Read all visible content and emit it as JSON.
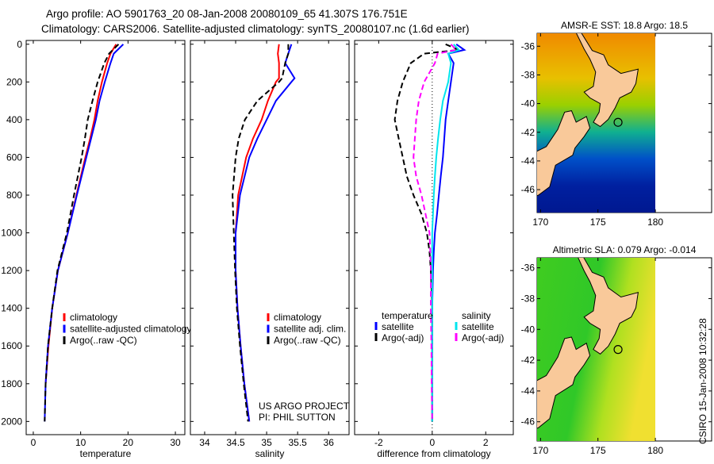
{
  "title_lines": [
    "Argo profile: AO 5901763_20 08-Jan-2008 20080109_65 41.307S 176.751E",
    "Climatology: CARS2006. Satellite-adjusted climatology: synTS_20080107.nc (1.6d earlier)"
  ],
  "side_stamp": "CSIRO 15-Jan-2008 10:32:28",
  "colors": {
    "climatology": "#ff0000",
    "satellite": "#0000ff",
    "argo": "#000000",
    "sal_satellite": "#00e5ee",
    "sal_argo": "#ff00ff"
  },
  "chart_data": [
    {
      "type": "line",
      "xlabel": "temperature",
      "ylabel": "",
      "xlim": [
        -1.5,
        32
      ],
      "ylim": [
        2070,
        -20
      ],
      "xticks": [
        "0",
        "10",
        "20",
        "30"
      ],
      "yticks": [
        "0",
        "200",
        "400",
        "600",
        "800",
        "1000",
        "1200",
        "1400",
        "1600",
        "1800",
        "2000"
      ],
      "depth": [
        0,
        50,
        100,
        200,
        300,
        400,
        500,
        600,
        800,
        1000,
        1200,
        1400,
        1600,
        1800,
        2000
      ],
      "series": [
        {
          "name": "climatology",
          "color_key": "climatology",
          "dash": false,
          "values": [
            17.5,
            16.3,
            15.6,
            14.5,
            13.6,
            12.9,
            12.0,
            11.0,
            9.1,
            7.3,
            5.2,
            4.0,
            3.2,
            2.6,
            null
          ]
        },
        {
          "name": "satellite-adjusted climatology",
          "color_key": "satellite",
          "dash": false,
          "values": [
            19.0,
            17.0,
            16.3,
            15.1,
            14.0,
            13.2,
            12.2,
            11.2,
            9.2,
            7.3,
            5.2,
            4.0,
            3.1,
            2.6,
            2.4
          ]
        },
        {
          "name": "Argo(..raw -QC)",
          "color_key": "argo",
          "dash": true,
          "values": [
            18.0,
            16.0,
            15.0,
            13.6,
            12.5,
            11.5,
            10.9,
            10.2,
            8.6,
            7.1,
            5.1,
            4.0,
            3.1,
            2.6,
            2.4
          ]
        }
      ],
      "legend": [
        "climatology",
        "satellite-adjusted climatology",
        "Argo(..raw -QC)"
      ]
    },
    {
      "type": "line",
      "xlabel": "salinity",
      "xlim": [
        33.77,
        36.33
      ],
      "ylim": [
        2070,
        -20
      ],
      "xticks": [
        "34",
        "34.5",
        "35",
        "35.5",
        "36"
      ],
      "xtick_values": [
        34,
        34.5,
        35,
        35.5,
        36
      ],
      "depth": [
        0,
        50,
        100,
        180,
        200,
        300,
        400,
        500,
        600,
        800,
        1000,
        1200,
        1400,
        1600,
        1800,
        2000
      ],
      "series": [
        {
          "name": "climatology",
          "color_key": "climatology",
          "dash": false,
          "values": [
            35.2,
            35.18,
            35.2,
            35.2,
            35.15,
            35.02,
            34.92,
            34.78,
            34.67,
            34.54,
            34.5,
            34.5,
            34.53,
            34.58,
            34.64,
            34.72
          ]
        },
        {
          "name": "satellite adj. clim.",
          "color_key": "satellite",
          "dash": false,
          "values": [
            35.4,
            35.35,
            35.3,
            35.45,
            35.4,
            35.15,
            35.0,
            34.85,
            34.72,
            34.57,
            34.5,
            34.5,
            34.53,
            34.58,
            34.64,
            34.72
          ]
        },
        {
          "name": "Argo(..raw -QC)",
          "color_key": "argo",
          "dash": true,
          "values": [
            35.35,
            35.35,
            35.3,
            35.25,
            35.2,
            34.85,
            34.65,
            34.55,
            34.5,
            34.45,
            34.47,
            34.49,
            34.52,
            34.57,
            34.63,
            34.7
          ]
        }
      ],
      "legend": [
        "climatology",
        "satellite adj. clim.",
        "Argo(..raw -QC)"
      ],
      "annotation": [
        "US ARGO PROJECT",
        "PI: PHIL SUTTON"
      ]
    },
    {
      "type": "line",
      "xlabel": "difference from climatology",
      "xlim": [
        -2.9,
        3.03
      ],
      "ylim": [
        2070,
        -20
      ],
      "xticks": [
        "-2",
        "0",
        "2"
      ],
      "xtick_values": [
        -2,
        0,
        2
      ],
      "depth": [
        0,
        30,
        50,
        100,
        200,
        300,
        400,
        500,
        600,
        700,
        800,
        900,
        1000,
        1100,
        1200,
        1400,
        1600,
        1800,
        2000
      ],
      "series": [
        {
          "name": "temperature satellite",
          "color_key": "satellite",
          "dash": false,
          "values": [
            0.9,
            1.2,
            0.6,
            0.8,
            0.7,
            0.6,
            0.5,
            0.45,
            0.4,
            0.32,
            0.25,
            0.18,
            0.1,
            0.06,
            0.03,
            0.0,
            0.0,
            0.0,
            0.0
          ]
        },
        {
          "name": "temperature Argo(-adj)",
          "color_key": "argo",
          "dash": true,
          "values": [
            0.5,
            1.0,
            -0.3,
            -0.8,
            -1.1,
            -1.3,
            -1.4,
            -1.25,
            -1.1,
            -0.95,
            -0.7,
            -0.4,
            -0.2,
            -0.1,
            -0.05,
            0.0,
            0.0,
            0.0,
            0.0
          ]
        },
        {
          "name": "salinity satellite",
          "color_key": "sal_satellite",
          "dash": false,
          "values": [
            0.8,
            1.0,
            0.6,
            0.7,
            0.6,
            0.4,
            0.3,
            0.22,
            0.15,
            0.1,
            0.06,
            0.03,
            0.0,
            0.0,
            0.0,
            0.0,
            0.0,
            0.0,
            0.0
          ]
        },
        {
          "name": "salinity Argo(-adj)",
          "color_key": "sal_argo",
          "dash": true,
          "values": [
            0.7,
            0.9,
            0.2,
            0.1,
            -0.3,
            -0.5,
            -0.6,
            -0.65,
            -0.7,
            -0.6,
            -0.4,
            -0.25,
            -0.1,
            -0.07,
            -0.05,
            -0.05,
            -0.03,
            -0.02,
            0.0
          ]
        }
      ],
      "legend_headers": [
        "temperature",
        "salinity"
      ],
      "legend": [
        "satellite",
        "Argo(-adj)",
        "satellite",
        "Argo(-adj)"
      ]
    }
  ],
  "maps": [
    {
      "title": "AMSR-E SST: 18.8 Argo: 18.5",
      "lat_ticks": [
        "-36",
        "-38",
        "-40",
        "-42",
        "-44",
        "-46"
      ],
      "lon_ticks": [
        "170",
        "175",
        "180"
      ],
      "field": "sst"
    },
    {
      "title": "Altimetric SLA: 0.079 Argo: -0.014",
      "lat_ticks": [
        "-36",
        "-38",
        "-40",
        "-42",
        "-44",
        "-46"
      ],
      "lon_ticks": [
        "170",
        "175",
        "180"
      ],
      "field": "sla"
    }
  ],
  "argo_position": {
    "lon": 176.751,
    "lat": -41.307
  }
}
